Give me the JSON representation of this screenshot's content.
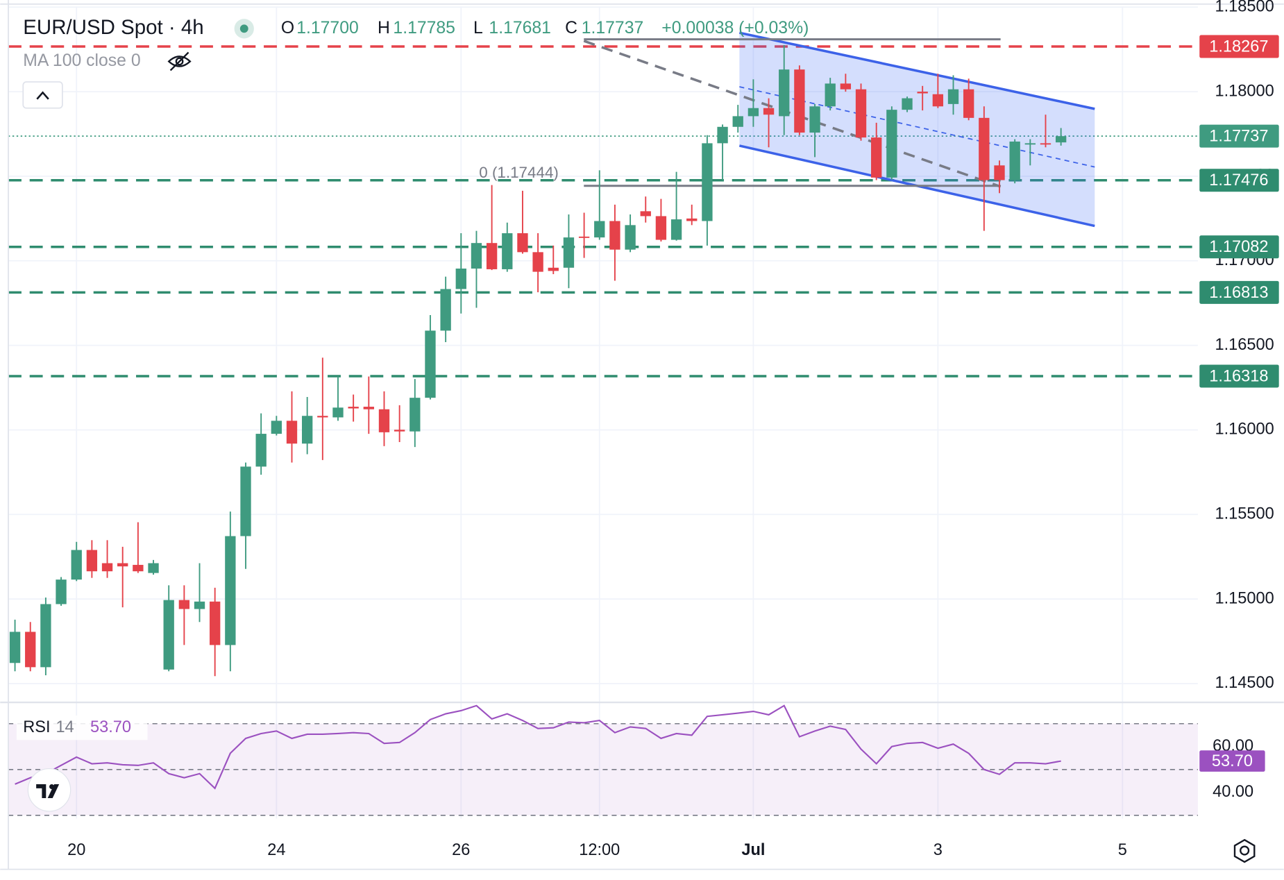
{
  "chart_data": {
    "type": "candlestick",
    "title": "EUR/USD Spot · 4h",
    "header": {
      "field_labels": [
        "O",
        "H",
        "L",
        "C"
      ],
      "open": {
        "value": 1.177,
        "label": "1.17700"
      },
      "high": 1.17785,
      "low": 1.17681,
      "close": 1.17737,
      "change": "+0.00038 (+0.03%)"
    },
    "indicator_label": "MA 100 close 0",
    "fib_label": "0 (1.17444)",
    "colors": {
      "up": "#3f9b80",
      "down": "#e5424a",
      "level_up": "#2f8c6f",
      "level_down": "#e5424a"
    },
    "candles": {
      "open": [
        1.14622,
        1.14806,
        1.14597,
        1.1497,
        1.15115,
        1.1529,
        1.15212,
        1.15212,
        1.15202,
        1.15154,
        1.14583,
        1.14994,
        1.14941,
        1.14985,
        1.14728,
        1.15372,
        1.15783,
        1.15977,
        1.16054,
        1.15919,
        1.16083,
        1.16074,
        1.16137,
        1.16137,
        1.16122,
        1.16001,
        1.15991,
        1.1619,
        1.16587,
        1.16833,
        1.16954,
        1.17105,
        1.1695,
        1.17163,
        1.17051,
        1.16959,
        1.16959,
        1.17143,
        1.17138,
        1.17235,
        1.17066,
        1.17293,
        1.17264,
        1.17124,
        1.1725,
        1.17235,
        1.17695,
        1.17792,
        1.17855,
        1.17903,
        1.17855,
        1.18131,
        1.17758,
        1.17913,
        1.18048,
        1.18014,
        1.17729,
        1.17492,
        1.17893,
        1.18,
        1.17985,
        1.17927,
        1.18014,
        1.17845,
        1.17564,
        1.17477,
        1.1769,
        1.17695,
        1.177
      ],
      "high": [
        1.14878,
        1.14864,
        1.15009,
        1.1513,
        1.15338,
        1.15348,
        1.15348,
        1.15309,
        1.15454,
        1.15231,
        1.15081,
        1.15081,
        1.15212,
        1.15067,
        1.15517,
        1.15807,
        1.16098,
        1.16083,
        1.16228,
        1.16195,
        1.16427,
        1.16316,
        1.16209,
        1.16316,
        1.16228,
        1.16146,
        1.16301,
        1.16679,
        1.16906,
        1.17163,
        1.17177,
        1.17448,
        1.17226,
        1.17414,
        1.17163,
        1.1709,
        1.17274,
        1.17284,
        1.17535,
        1.17332,
        1.17274,
        1.1738,
        1.17366,
        1.17526,
        1.17332,
        1.17743,
        1.17806,
        1.17922,
        1.18073,
        1.17961,
        1.18276,
        1.18155,
        1.17927,
        1.18082,
        1.18106,
        1.18048,
        1.17816,
        1.17913,
        1.17971,
        1.18034,
        1.18106,
        1.18097,
        1.18077,
        1.17913,
        1.17593,
        1.17719,
        1.17719,
        1.17864,
        1.17785
      ],
      "low": [
        1.14573,
        1.14573,
        1.14549,
        1.1496,
        1.15106,
        1.15125,
        1.15125,
        1.14951,
        1.15154,
        1.15144,
        1.14573,
        1.14728,
        1.14864,
        1.14544,
        1.14573,
        1.15178,
        1.15735,
        1.15967,
        1.15807,
        1.15856,
        1.15822,
        1.16054,
        1.16049,
        1.15977,
        1.15904,
        1.15928,
        1.15899,
        1.1618,
        1.16519,
        1.16688,
        1.16722,
        1.16945,
        1.16935,
        1.17042,
        1.16814,
        1.16921,
        1.16838,
        1.17017,
        1.17124,
        1.16882,
        1.17051,
        1.17226,
        1.17114,
        1.17119,
        1.17211,
        1.1709,
        1.17477,
        1.17758,
        1.17792,
        1.17671,
        1.17743,
        1.17743,
        1.17613,
        1.17889,
        1.18,
        1.1771,
        1.17477,
        1.17477,
        1.17879,
        1.17889,
        1.17903,
        1.17864,
        1.17831,
        1.17177,
        1.174,
        1.17458,
        1.17564,
        1.17671,
        1.17681
      ],
      "close": [
        1.14806,
        1.14597,
        1.1497,
        1.15115,
        1.1529,
        1.15164,
        1.15164,
        1.15193,
        1.15164,
        1.15212,
        1.14994,
        1.14941,
        1.14985,
        1.14728,
        1.15372,
        1.15783,
        1.15977,
        1.16054,
        1.15919,
        1.16083,
        1.16074,
        1.16132,
        1.16127,
        1.16122,
        1.15986,
        1.15991,
        1.1619,
        1.16587,
        1.16833,
        1.16954,
        1.17105,
        1.1695,
        1.17163,
        1.17051,
        1.16935,
        1.1694,
        1.17138,
        1.17138,
        1.17235,
        1.17066,
        1.17211,
        1.17264,
        1.17124,
        1.17245,
        1.17235,
        1.17695,
        1.17792,
        1.17855,
        1.17903,
        1.17864,
        1.18131,
        1.17758,
        1.17913,
        1.18048,
        1.18014,
        1.17729,
        1.17492,
        1.17893,
        1.17961,
        1.1799,
        1.17913,
        1.18014,
        1.17845,
        1.17477,
        1.17477,
        1.17705,
        1.17695,
        1.1769,
        1.17737
      ]
    },
    "xlim": [
      -0.43,
      76.9
    ],
    "xticks": [
      {
        "value": 4,
        "label": "20"
      },
      {
        "value": 17,
        "label": "24"
      },
      {
        "value": 29,
        "label": "26"
      },
      {
        "value": 38,
        "label": "12:00"
      },
      {
        "value": 48,
        "label": "Jul"
      },
      {
        "value": 60,
        "label": "3"
      },
      {
        "value": 72,
        "label": "5"
      }
    ],
    "ylim": [
      1.14389,
      1.18542
    ],
    "yticks": [
      {
        "value": 1.145,
        "label": "1.14500"
      },
      {
        "value": 1.15,
        "label": "1.15000"
      },
      {
        "value": 1.155,
        "label": "1.15500"
      },
      {
        "value": 1.16,
        "label": "1.16000"
      },
      {
        "value": 1.165,
        "label": "1.16500"
      },
      {
        "value": 1.17,
        "label": "1.17000"
      },
      {
        "value": 1.175,
        "label": "1.17500"
      },
      {
        "value": 1.18,
        "label": "1.18000"
      },
      {
        "value": 1.185,
        "label": "1.18500"
      }
    ],
    "grid": true,
    "levels": [
      {
        "value": 1.18267,
        "direction": "down"
      },
      {
        "value": 1.17476,
        "direction": "up"
      },
      {
        "value": 1.17082,
        "direction": "up"
      },
      {
        "value": 1.16813,
        "direction": "up"
      },
      {
        "value": 1.16318,
        "direction": "up"
      }
    ],
    "last_price": 1.17737,
    "rsi": {
      "type": "line",
      "name": "RSI",
      "period": 14,
      "color": "#9b51c0",
      "values": [
        43.6,
        46.4,
        48.2,
        51.8,
        55.4,
        52.5,
        52.9,
        52.1,
        51.8,
        52.9,
        48.2,
        46.4,
        48.2,
        41.8,
        57.1,
        63.6,
        65.7,
        66.8,
        63.6,
        65.4,
        65.4,
        65.7,
        66.1,
        65.7,
        61.4,
        61.8,
        66.1,
        71.8,
        74.3,
        75.7,
        77.9,
        72.1,
        74.3,
        71.4,
        67.9,
        68.2,
        70.7,
        70.4,
        71.4,
        66.1,
        68.6,
        67.9,
        63.6,
        65.7,
        65.0,
        73.2,
        73.9,
        74.6,
        75.4,
        73.9,
        77.9,
        64.3,
        66.8,
        68.9,
        67.5,
        58.9,
        52.5,
        60.0,
        61.4,
        61.8,
        59.3,
        61.1,
        57.1,
        50.0,
        47.9,
        52.9,
        52.9,
        52.5,
        53.7
      ],
      "current": {
        "value": 53.7,
        "label": "53.70"
      },
      "ylim": [
        30,
        78.6
      ],
      "yticks": [
        {
          "value": 40,
          "label": "40.00"
        },
        {
          "value": 60,
          "label": "60.00"
        }
      ],
      "levels": [
        30,
        50,
        70
      ]
    }
  }
}
